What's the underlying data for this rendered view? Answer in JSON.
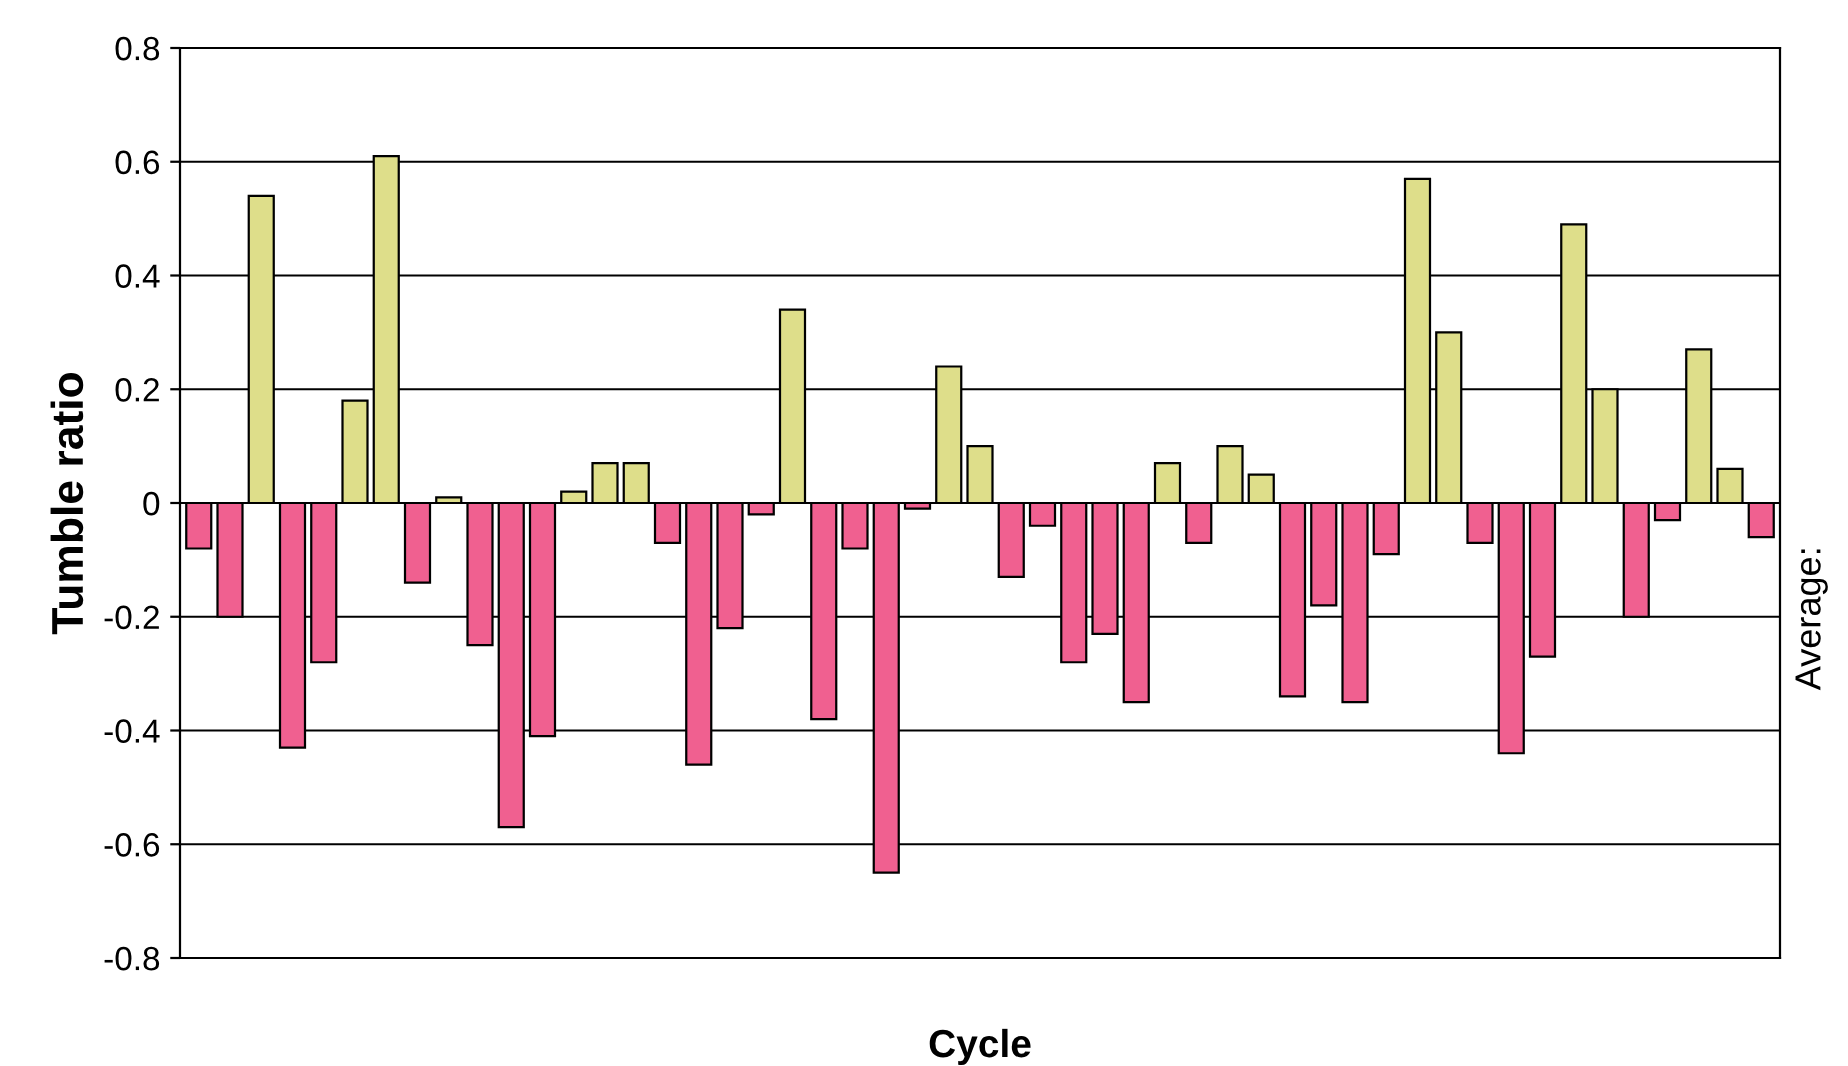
{
  "chart_data": {
    "type": "bar",
    "xlabel": "Cycle",
    "ylabel": "Tumble ratio",
    "categories": [
      null,
      null,
      null,
      null,
      null,
      null,
      null,
      null,
      null,
      null,
      null,
      null,
      null,
      null,
      null,
      null,
      null,
      null,
      null,
      null,
      null,
      null,
      null,
      null,
      null,
      null,
      null,
      null,
      null,
      null,
      null,
      null,
      null,
      null,
      null,
      null,
      null,
      null,
      null,
      null,
      null,
      null,
      null,
      null,
      null,
      null,
      null,
      null,
      null,
      null,
      null
    ],
    "values": [
      -0.08,
      -0.2,
      0.54,
      -0.43,
      -0.28,
      0.18,
      0.61,
      -0.14,
      0.01,
      -0.25,
      -0.57,
      -0.41,
      0.02,
      0.07,
      0.07,
      -0.07,
      -0.46,
      -0.22,
      -0.02,
      0.34,
      -0.38,
      -0.08,
      -0.65,
      -0.01,
      0.24,
      0.1,
      -0.13,
      -0.04,
      -0.28,
      -0.23,
      -0.35,
      0.07,
      -0.07,
      0.1,
      0.05,
      -0.34,
      -0.18,
      -0.35,
      -0.09,
      0.57,
      0.3,
      -0.07,
      -0.44,
      -0.27,
      0.49,
      0.2,
      -0.2,
      -0.03,
      0.27,
      0.06,
      -0.06
    ],
    "colors": [
      "#f06090",
      "#f06090",
      "#dede8a",
      "#f06090",
      "#f06090",
      "#dede8a",
      "#dede8a",
      "#f06090",
      "#dede8a",
      "#f06090",
      "#f06090",
      "#f06090",
      "#dede8a",
      "#dede8a",
      "#dede8a",
      "#f06090",
      "#f06090",
      "#f06090",
      "#f06090",
      "#dede8a",
      "#f06090",
      "#f06090",
      "#f06090",
      "#f06090",
      "#dede8a",
      "#dede8a",
      "#f06090",
      "#f06090",
      "#f06090",
      "#f06090",
      "#f06090",
      "#dede8a",
      "#f06090",
      "#dede8a",
      "#dede8a",
      "#f06090",
      "#f06090",
      "#f06090",
      "#f06090",
      "#dede8a",
      "#dede8a",
      "#f06090",
      "#f06090",
      "#f06090",
      "#dede8a",
      "#dede8a",
      "#f06090",
      "#f06090",
      "#dede8a",
      "#dede8a",
      "#f06090"
    ],
    "ylim": [
      -0.8,
      0.8
    ],
    "yticks": [
      -0.8,
      -0.6,
      -0.4,
      -0.2,
      0,
      0.2,
      0.4,
      0.6,
      0.8
    ],
    "grid": "y",
    "annotations": [
      "Average:"
    ]
  }
}
